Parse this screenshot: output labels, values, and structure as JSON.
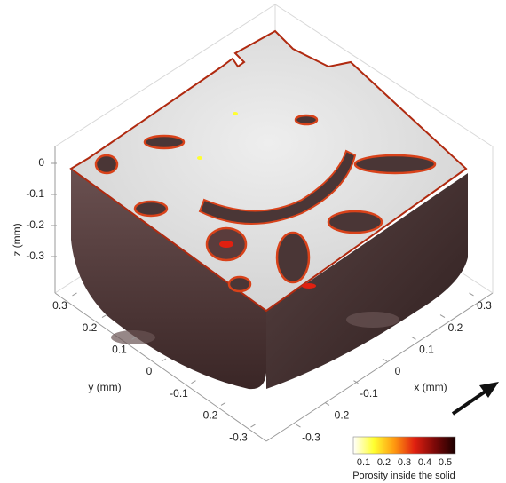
{
  "chart_data": {
    "type": "surface3d",
    "xlabel": "x (mm)",
    "ylabel": "y (mm)",
    "zlabel": "z (mm)",
    "xlim": [
      -0.34,
      0.34
    ],
    "ylim": [
      -0.34,
      0.34
    ],
    "zlim": [
      -0.36,
      0.03
    ],
    "xticks": [
      -0.3,
      -0.2,
      -0.1,
      0,
      0.1,
      0.2,
      0.3
    ],
    "yticks": [
      0.3,
      0.2,
      0.1,
      0,
      -0.1,
      -0.2,
      -0.3
    ],
    "zticks": [
      0,
      -0.1,
      -0.2,
      -0.3
    ],
    "colorbar": {
      "label": "Porosity inside the solid",
      "clim": [
        0.05,
        0.55
      ],
      "ticks": [
        0.1,
        0.2,
        0.3,
        0.4,
        0.5
      ],
      "colors": [
        "#ffffff",
        "#ffff30",
        "#ff9a10",
        "#e02010",
        "#7a0808",
        "#1a0000"
      ]
    }
  }
}
